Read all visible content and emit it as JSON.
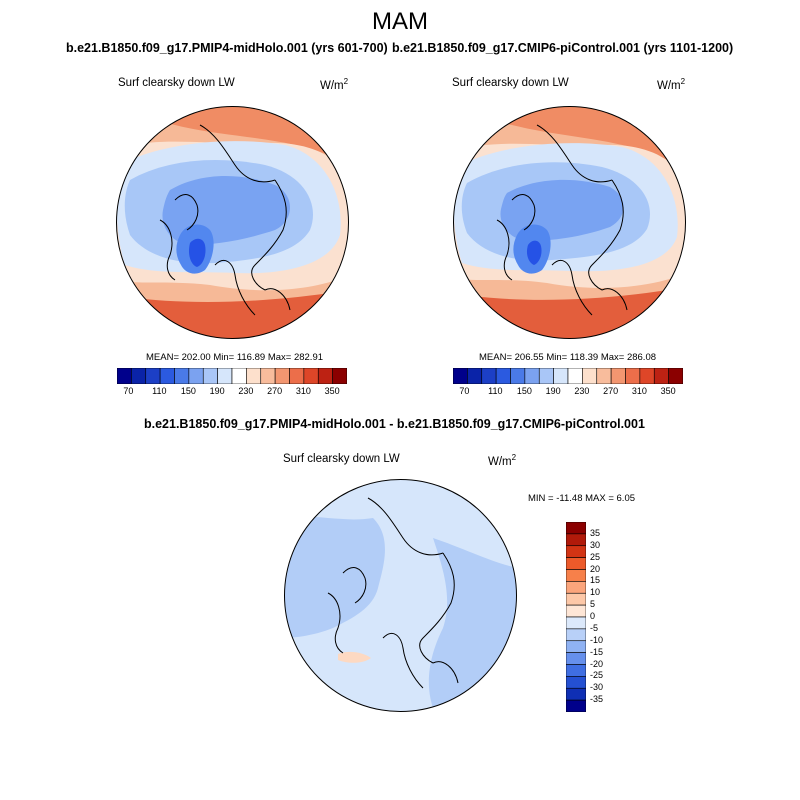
{
  "figure": {
    "season": "MAM",
    "panel_left": {
      "title": "b.e21.B1850.f09_g17.PMIP4-midHolo.001 (yrs 601-700)",
      "variable": "Surf clearsky down LW",
      "units": "W/m",
      "units_exp": "2",
      "stats": "MEAN= 202.00  Min= 116.89  Max= 282.91"
    },
    "panel_right": {
      "title": "b.e21.B1850.f09_g17.CMIP6-piControl.001 (yrs 1101-1200)",
      "variable": "Surf clearsky down LW",
      "units": "W/m",
      "units_exp": "2",
      "stats": "MEAN= 206.55  Min= 118.39  Max= 286.08"
    },
    "panel_diff": {
      "title": "b.e21.B1850.f09_g17.PMIP4-midHolo.001 - b.e21.B1850.f09_g17.CMIP6-piControl.001",
      "variable": "Surf clearsky down LW",
      "units": "W/m",
      "units_exp": "2",
      "stats": "MIN = -11.48 MAX =   6.05"
    },
    "abs_colorbar": {
      "colors": [
        "#00008b",
        "#0a23a8",
        "#1c3fc6",
        "#2b5ae0",
        "#4a7ae8",
        "#7ba2f0",
        "#a9c6f7",
        "#d6e6fb",
        "#ffffff",
        "#fde0cc",
        "#f8bc9c",
        "#f39670",
        "#ec6e4a",
        "#de4628",
        "#bd2213",
        "#8b0000"
      ],
      "tick_labels": [
        "70",
        "110",
        "150",
        "190",
        "230",
        "270",
        "310",
        "350"
      ]
    },
    "diff_colorbar": {
      "colors": [
        "#8b0000",
        "#b11a0a",
        "#d23414",
        "#ec5a2a",
        "#f7804a",
        "#fba57c",
        "#fdc8a8",
        "#fee6d6",
        "#dce9fb",
        "#b8d0f8",
        "#8fb2f3",
        "#6690ec",
        "#3f6ee2",
        "#2450d2",
        "#0f2fb4",
        "#00008b"
      ],
      "tick_labels": [
        "35",
        "30",
        "25",
        "20",
        "15",
        "10",
        "5",
        "0",
        "-5",
        "-10",
        "-15",
        "-20",
        "-25",
        "-30",
        "-35"
      ]
    },
    "palette": {
      "abs_panel_colors": [
        "#2552e6",
        "#5287ef",
        "#79a3f2",
        "#a8c7f7",
        "#d6e6fb",
        "#fbe1d0",
        "#f6b997",
        "#f08c64",
        "#e35e3c"
      ],
      "diff_panel_colors": [
        "#d6e6fb",
        "#b2cdf7",
        "#fdd9c2"
      ]
    }
  }
}
